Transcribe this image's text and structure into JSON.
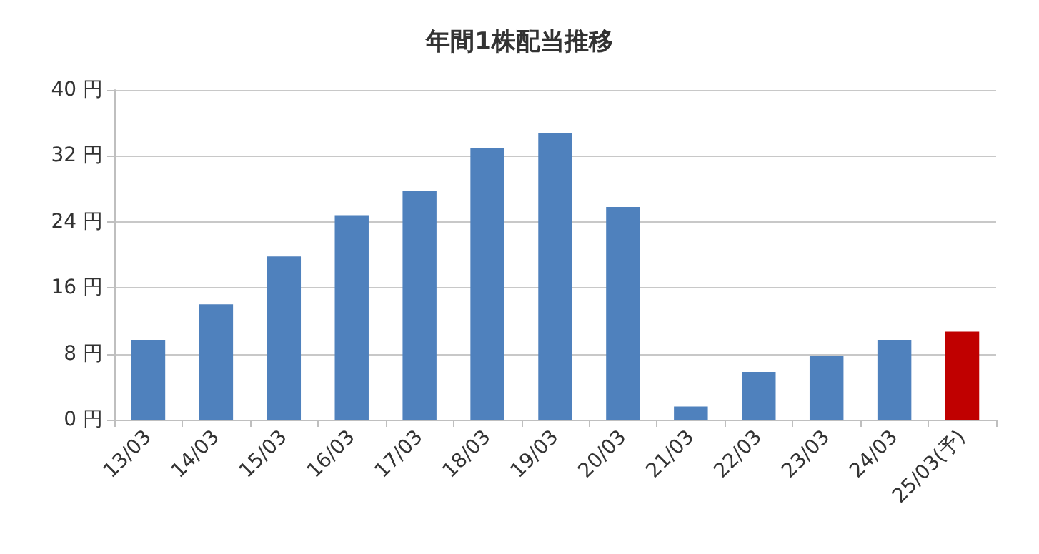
{
  "chart_data": {
    "type": "bar",
    "title": "年間1株配当推移",
    "categories": [
      "13/03",
      "14/03",
      "15/03",
      "16/03",
      "17/03",
      "18/03",
      "19/03",
      "20/03",
      "21/03",
      "22/03",
      "23/03",
      "24/03",
      "25/03(予)"
    ],
    "values": [
      9.7,
      14,
      19.8,
      24.8,
      27.7,
      32.9,
      34.8,
      25.8,
      1.6,
      5.8,
      7.8,
      9.7,
      10.7
    ],
    "colors": [
      "#4f81bd",
      "#4f81bd",
      "#4f81bd",
      "#4f81bd",
      "#4f81bd",
      "#4f81bd",
      "#4f81bd",
      "#4f81bd",
      "#4f81bd",
      "#4f81bd",
      "#4f81bd",
      "#4f81bd",
      "#c00000"
    ],
    "ylim": [
      0,
      40
    ],
    "yticks": [
      {
        "value": 0,
        "label": "0 円"
      },
      {
        "value": 8,
        "label": "8 円"
      },
      {
        "value": 16,
        "label": "16 円"
      },
      {
        "value": 24,
        "label": "24 円"
      },
      {
        "value": 32,
        "label": "32 円"
      },
      {
        "value": 40,
        "label": "40 円"
      }
    ],
    "grid": "y"
  }
}
